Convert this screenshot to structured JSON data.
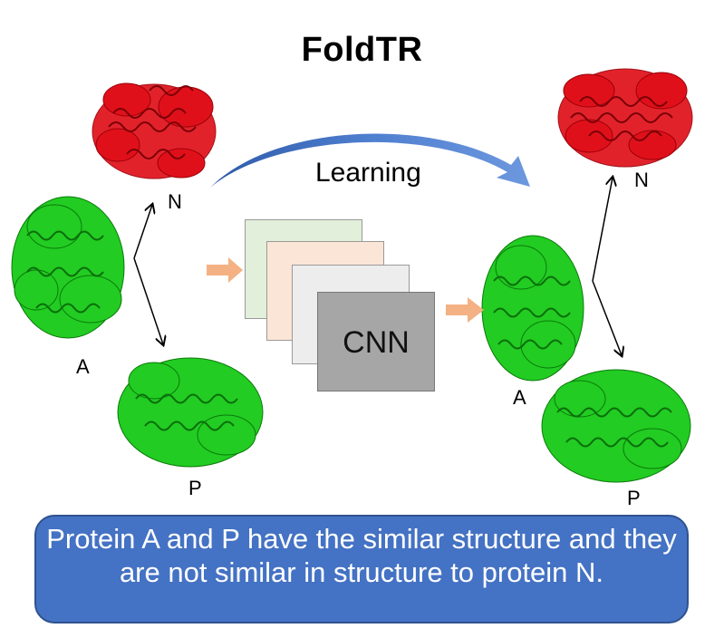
{
  "title": "FoldTR",
  "learning_label": "Learning",
  "cnn_label": "CNN",
  "left": {
    "n_label": "N",
    "a_label": "A",
    "p_label": "P"
  },
  "right": {
    "n_label": "N",
    "a_label": "A",
    "p_label": "P"
  },
  "caption": "Protein A and P have the similar structure and they are not similar in structure to protein N.",
  "colors": {
    "protein_n": "#e0101a",
    "protein_ap": "#22cc22",
    "learning_arrow": "#4472c4",
    "small_arrow": "#f4b183",
    "caption_bg": "#4472c4",
    "layer1": "#e2efda",
    "layer2": "#fbe5d6",
    "layer3": "#ededed",
    "layer4": "#a6a6a6"
  }
}
